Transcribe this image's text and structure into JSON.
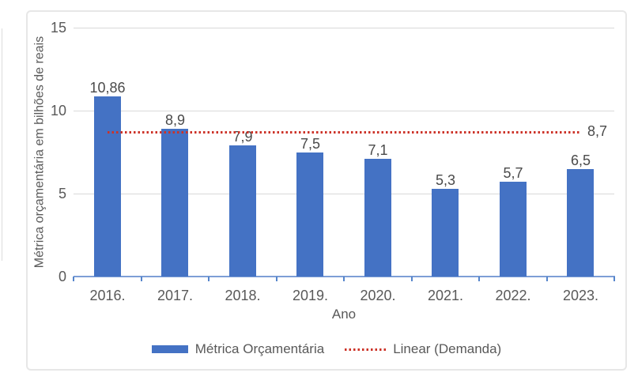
{
  "chart_data": {
    "type": "bar",
    "categories": [
      "2016.",
      "2017.",
      "2018.",
      "2019.",
      "2020.",
      "2021.",
      "2022.",
      "2023."
    ],
    "series": [
      {
        "name": "Métrica Orçamentária",
        "values": [
          10.86,
          8.9,
          7.9,
          7.5,
          7.1,
          5.3,
          5.7,
          6.5
        ],
        "value_labels": [
          "10,86",
          "8,9",
          "7,9",
          "7,5",
          "7,1",
          "5,3",
          "5,7",
          "6,5"
        ]
      }
    ],
    "trendline": {
      "name": "Linear (Demanda)",
      "value": 8.7,
      "label": "8,7"
    },
    "xlabel": "Ano",
    "ylabel": "Métrica orçamentária em bilhões de reais",
    "ylim": [
      0,
      15
    ],
    "yticks": [
      0,
      5,
      10,
      15
    ],
    "grid": true,
    "legend_position": "bottom",
    "legend": [
      "Métrica Orçamentária",
      "Linear (Demanda)"
    ],
    "colors": {
      "bar": "#4472C4",
      "trendline": "#CC3328",
      "axis_line": "#7D9ED6",
      "tick_mark": "#5585CB",
      "gridline": "#D9D9D9",
      "text": "#595959",
      "data_label": "#4A4A4A"
    }
  }
}
